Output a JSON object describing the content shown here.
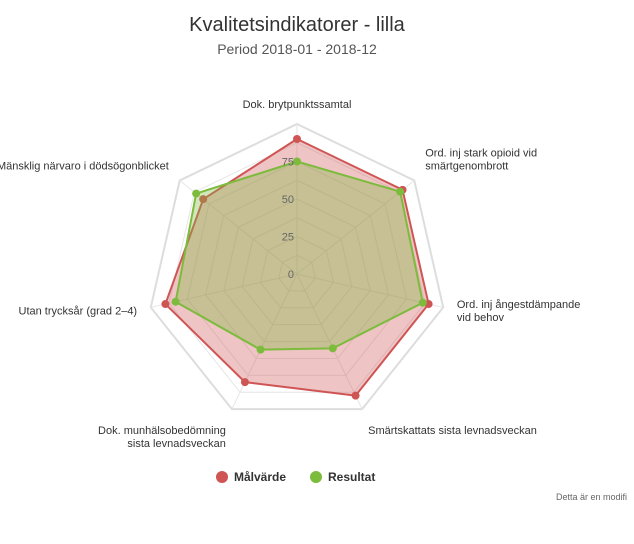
{
  "chart_data": {
    "type": "radar",
    "title": "Kvalitetsindikatorer - lilla",
    "subtitle": "Period 2018-01 - 2018-12",
    "categories": [
      [
        "Dok. brytpunktssamtal"
      ],
      [
        "Ord. inj stark opioid vid",
        "smärtgenombrott"
      ],
      [
        "Ord. inj ångestdämpande",
        "vid behov"
      ],
      [
        "Smärtskattats sista levnadsveckan"
      ],
      [
        "Dok. munhälsobedömning",
        "sista levnadsveckan"
      ],
      [
        "Utan trycksår (grad 2–4)"
      ],
      [
        "Mänsklig närvaro i dödsögonblicket"
      ]
    ],
    "ylim": [
      0,
      100
    ],
    "ticks": [
      "0",
      "25",
      "50",
      "75"
    ],
    "tick_values": [
      0,
      25,
      50,
      75
    ],
    "series": [
      {
        "name": "Målvärde",
        "color": "#cf5555",
        "values": [
          90,
          90,
          90,
          90,
          80,
          90,
          80
        ]
      },
      {
        "name": "Resultat",
        "color": "#7cbb3c",
        "values": [
          75,
          88,
          86,
          55,
          56,
          83,
          86
        ]
      }
    ],
    "legend_position": "bottom",
    "footnote": "Detta är en modifi"
  }
}
